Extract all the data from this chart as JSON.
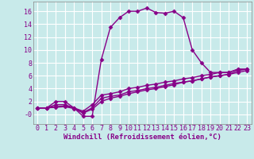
{
  "background_color": "#c8eaea",
  "grid_color": "#ffffff",
  "line_color": "#880088",
  "marker": "D",
  "markersize": 2.5,
  "linewidth": 1.0,
  "xlabel": "Windchill (Refroidissement éolien,°C)",
  "xlabel_fontsize": 6.5,
  "tick_fontsize": 6,
  "xlim": [
    -0.5,
    23.5
  ],
  "ylim": [
    -1.5,
    17.5
  ],
  "yticks": [
    0,
    2,
    4,
    6,
    8,
    10,
    12,
    14,
    16
  ],
  "ytick_labels": [
    "-0",
    "2",
    "4",
    "6",
    "8",
    "10",
    "12",
    "14",
    "16"
  ],
  "xticks": [
    0,
    1,
    2,
    3,
    4,
    5,
    6,
    7,
    8,
    9,
    10,
    11,
    12,
    13,
    14,
    15,
    16,
    17,
    18,
    19,
    20,
    21,
    22,
    23
  ],
  "series": [
    [
      1,
      1,
      2,
      2,
      1,
      -0.3,
      -0.3,
      8.5,
      13.5,
      15.0,
      16.0,
      16.0,
      16.5,
      15.8,
      15.7,
      16.0,
      15.0,
      10.0,
      8.0,
      6.5,
      6.5,
      6.5,
      7.0,
      7.0
    ],
    [
      1,
      1,
      1.5,
      1.5,
      1,
      0.5,
      1.5,
      3.0,
      3.2,
      3.5,
      4.0,
      4.2,
      4.5,
      4.7,
      5.0,
      5.2,
      5.5,
      5.7,
      6.0,
      6.2,
      6.5,
      6.5,
      7.0,
      7.0
    ],
    [
      1,
      1,
      1.2,
      1.3,
      1,
      0.3,
      1.0,
      2.5,
      2.8,
      3.0,
      3.5,
      3.7,
      4.0,
      4.2,
      4.5,
      4.8,
      5.0,
      5.2,
      5.5,
      5.8,
      6.0,
      6.2,
      6.8,
      7.0
    ],
    [
      1,
      1,
      1.1,
      1.2,
      0.9,
      0.2,
      0.8,
      2.0,
      2.5,
      2.8,
      3.2,
      3.5,
      3.8,
      4.0,
      4.3,
      4.6,
      5.0,
      5.2,
      5.5,
      5.8,
      6.0,
      6.2,
      6.5,
      6.8
    ]
  ]
}
